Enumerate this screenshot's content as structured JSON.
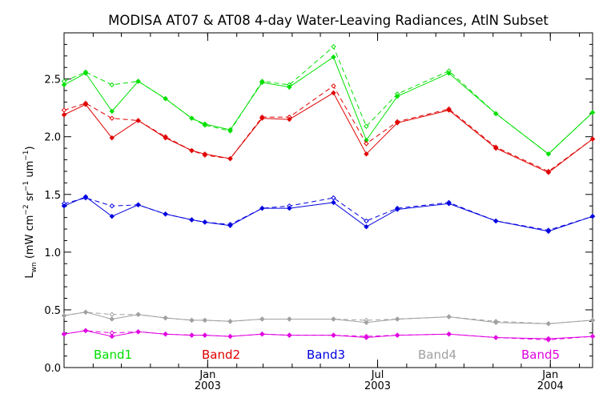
{
  "chart_data": {
    "type": "line",
    "title": "MODISA AT07 & AT08 4-day Water-Leaving Radiances, AtlN Subset",
    "ylabel": {
      "main": "L",
      "sub": "wn",
      "units_prefix": "(mW cm",
      "exp1": "−2",
      "units_mid": " sr",
      "exp2": "−1",
      "units_mid2": " um",
      "exp3": "−1",
      "units_suffix": ")"
    },
    "ylim": [
      0.0,
      2.9
    ],
    "xlim": [
      "2002-08-01",
      "2004-02-15"
    ],
    "y_ticks": [
      {
        "v": 0.0,
        "label": "0.0"
      },
      {
        "v": 0.5,
        "label": "0.5"
      },
      {
        "v": 1.0,
        "label": "1.0"
      },
      {
        "v": 1.5,
        "label": "1.5"
      },
      {
        "v": 2.0,
        "label": "2.0"
      },
      {
        "v": 2.5,
        "label": "2.5"
      }
    ],
    "x_ticks": [
      {
        "date": "2003-01-01",
        "label1": "Jan",
        "label2": "2003"
      },
      {
        "date": "2003-07-01",
        "label1": "Jul",
        "label2": "2003"
      },
      {
        "date": "2004-01-01",
        "label1": "Jan",
        "label2": "2004"
      }
    ],
    "dates": [
      "2002-08-01",
      "2002-08-24",
      "2002-09-21",
      "2002-10-19",
      "2002-11-17",
      "2002-12-15",
      "2002-12-29",
      "2003-01-25",
      "2003-02-28",
      "2003-03-29",
      "2003-05-15",
      "2003-06-19",
      "2003-07-22",
      "2003-09-15",
      "2003-11-04",
      "2003-12-30",
      "2004-02-15"
    ],
    "series": [
      {
        "name": "Band1",
        "color": "#00e000",
        "solid": [
          2.45,
          2.55,
          2.22,
          2.48,
          2.33,
          2.16,
          2.11,
          2.06,
          2.47,
          2.43,
          2.69,
          1.97,
          2.35,
          2.55,
          2.2,
          1.85,
          2.21
        ],
        "dashed": [
          2.48,
          2.56,
          2.45,
          2.48,
          2.33,
          2.16,
          2.1,
          2.05,
          2.48,
          2.45,
          2.78,
          2.09,
          2.37,
          2.57,
          2.2,
          1.85,
          2.21
        ]
      },
      {
        "name": "Band2",
        "color": "#e00000",
        "solid": [
          2.19,
          2.28,
          1.99,
          2.14,
          1.99,
          1.88,
          1.85,
          1.81,
          2.16,
          2.15,
          2.38,
          1.85,
          2.12,
          2.23,
          1.9,
          1.69,
          1.98
        ],
        "dashed": [
          2.23,
          2.29,
          2.16,
          2.14,
          2.0,
          1.88,
          1.84,
          1.81,
          2.17,
          2.17,
          2.44,
          1.94,
          2.13,
          2.24,
          1.91,
          1.7,
          1.98
        ]
      },
      {
        "name": "Band3",
        "color": "#0000e0",
        "solid": [
          1.4,
          1.48,
          1.31,
          1.41,
          1.33,
          1.28,
          1.26,
          1.23,
          1.38,
          1.38,
          1.43,
          1.22,
          1.37,
          1.42,
          1.27,
          1.18,
          1.31
        ],
        "dashed": [
          1.42,
          1.47,
          1.4,
          1.41,
          1.33,
          1.28,
          1.26,
          1.24,
          1.38,
          1.4,
          1.47,
          1.27,
          1.38,
          1.43,
          1.27,
          1.19,
          1.31
        ]
      },
      {
        "name": "Band4",
        "color": "#a0a0a0",
        "solid": [
          0.45,
          0.48,
          0.42,
          0.46,
          0.43,
          0.41,
          0.41,
          0.4,
          0.42,
          0.42,
          0.42,
          0.39,
          0.42,
          0.44,
          0.39,
          0.38,
          0.41
        ],
        "dashed": [
          0.45,
          0.48,
          0.46,
          0.46,
          0.43,
          0.41,
          0.41,
          0.4,
          0.42,
          0.42,
          0.42,
          0.41,
          0.42,
          0.44,
          0.4,
          0.38,
          0.41
        ]
      },
      {
        "name": "Band5",
        "color": "#e000e0",
        "solid": [
          0.29,
          0.32,
          0.27,
          0.31,
          0.29,
          0.28,
          0.28,
          0.27,
          0.29,
          0.28,
          0.28,
          0.26,
          0.28,
          0.29,
          0.26,
          0.25,
          0.27
        ],
        "dashed": [
          0.29,
          0.32,
          0.3,
          0.31,
          0.29,
          0.28,
          0.28,
          0.27,
          0.29,
          0.28,
          0.28,
          0.27,
          0.28,
          0.29,
          0.26,
          0.24,
          0.27
        ]
      }
    ],
    "grid": false,
    "legend_position": "bottom"
  }
}
